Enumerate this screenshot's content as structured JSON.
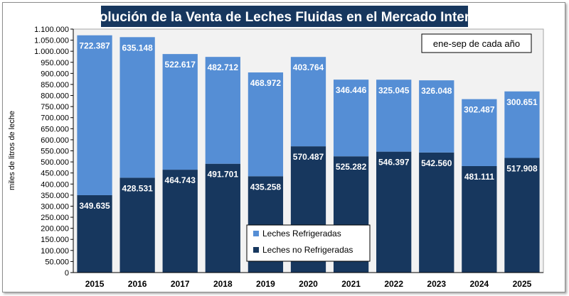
{
  "chart_data": {
    "type": "bar",
    "stacked": true,
    "title": "Evolución de la Venta de Leches Fluidas en el Mercado Interno",
    "annotation": "ene-sep de cada año",
    "ylabel": "miles de litros de leche",
    "xlabel": "",
    "ylim": [
      0,
      1100000
    ],
    "ytick_step": 50000,
    "yticks": [
      "0",
      "50.000",
      "100.000",
      "150.000",
      "200.000",
      "250.000",
      "300.000",
      "350.000",
      "400.000",
      "450.000",
      "500.000",
      "550.000",
      "600.000",
      "650.000",
      "700.000",
      "750.000",
      "800.000",
      "850.000",
      "900.000",
      "950.000",
      "1.000.000",
      "1.050.000",
      "1.100.000"
    ],
    "categories": [
      "2015",
      "2016",
      "2017",
      "2018",
      "2019",
      "2020",
      "2021",
      "2022",
      "2023",
      "2024",
      "2025"
    ],
    "series": [
      {
        "name": "Leches no Refrigeradas",
        "color": "#17375e",
        "values": [
          349635,
          428531,
          464743,
          491701,
          435258,
          570487,
          525282,
          546397,
          542560,
          481111,
          517908
        ],
        "labels": [
          "349.635",
          "428.531",
          "464.743",
          "491.701",
          "435.258",
          "570.487",
          "525.282",
          "546.397",
          "542.560",
          "481.111",
          "517.908"
        ]
      },
      {
        "name": "Leches Refrigeradas",
        "color": "#558ed5",
        "values": [
          722387,
          635148,
          522617,
          482712,
          468972,
          403764,
          346446,
          325045,
          326048,
          302487,
          300651
        ],
        "labels": [
          "722.387",
          "635.148",
          "522.617",
          "482.712",
          "468.972",
          "403.764",
          "346.446",
          "325.045",
          "326.048",
          "302.487",
          "300.651"
        ]
      }
    ],
    "legend_order": [
      "Leches Refrigeradas",
      "Leches no Refrigeradas"
    ],
    "legend_position": "bottom-center",
    "grid": false
  }
}
